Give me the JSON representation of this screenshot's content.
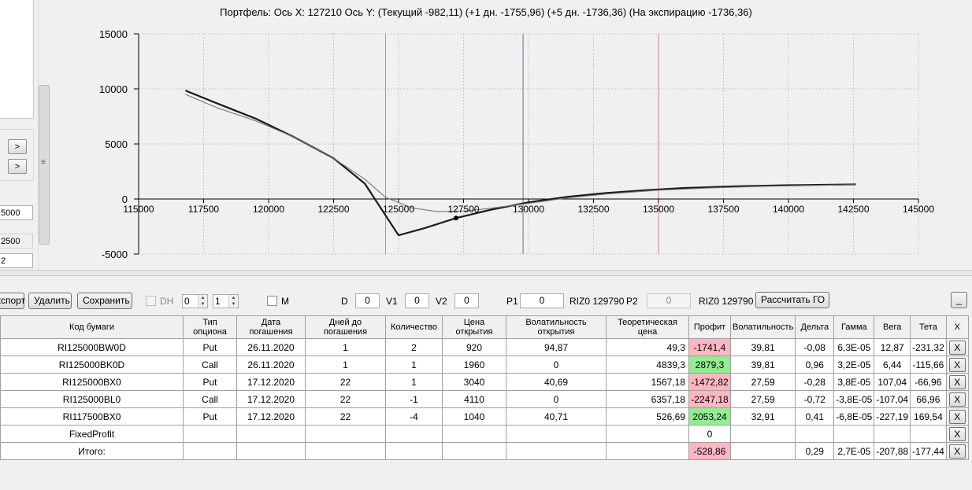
{
  "left_panel": {
    "field1": "5000",
    "field2": "2500",
    "field3": "2",
    "next_btn": ">",
    "scroll_grip": "≡"
  },
  "chart": {
    "title": "Портфель: Ось X: 127210 Ось Y:  (Текущий -982,11)  (+1 дн. -1755,96)  (+5 дн. -1736,36)  (На экспирацию -1736,36)",
    "colors": {
      "expiry_line": "#1a1a1a",
      "current_line": "#777777",
      "strike_lines": "#e07a8a",
      "cursor_line": "#6a6a9a"
    }
  },
  "chart_data": {
    "type": "line",
    "xlim": [
      115000,
      145000
    ],
    "ylim": [
      -5000,
      15000
    ],
    "x_ticks": [
      "115000",
      "117500",
      "120000",
      "122500",
      "125000",
      "127500",
      "130000",
      "132500",
      "135000",
      "137500",
      "140000",
      "142500",
      "145000"
    ],
    "y_ticks": [
      "15000",
      "10000",
      "5000",
      "0",
      "-5000"
    ],
    "grid": true,
    "vertical_markers": [
      {
        "name": "strike-low",
        "x": 124500
      },
      {
        "name": "cursor",
        "x": 129790
      },
      {
        "name": "strike-high",
        "x": 135000
      }
    ],
    "marker_point": {
      "x": 127210,
      "y": -1736
    },
    "series": [
      {
        "x": [
          116800,
          118000,
          119500,
          121000,
          122500,
          123700,
          125000,
          126000,
          127210,
          128500,
          130000,
          131500,
          133000,
          134500,
          136000,
          138000,
          140000,
          142600
        ],
        "y": [
          9850,
          8700,
          7300,
          5600,
          3700,
          1400,
          -3300,
          -2650,
          -1736,
          -1000,
          -300,
          200,
          550,
          800,
          1000,
          1150,
          1250,
          1320
        ]
      },
      {
        "x": [
          116800,
          118000,
          119500,
          121000,
          122500,
          123700,
          124500,
          125500,
          126500,
          127500,
          128500,
          130000,
          131500,
          133000,
          135000,
          137000,
          139000,
          142600
        ],
        "y": [
          9500,
          8300,
          7100,
          5600,
          3700,
          1800,
          150,
          -800,
          -1150,
          -1100,
          -850,
          -400,
          100,
          450,
          800,
          1000,
          1150,
          1300
        ]
      }
    ]
  },
  "toolbar": {
    "export_label": "Экспорт",
    "delete_label": "Удалить",
    "save_label": "Сохранить",
    "dh_label": "DH",
    "spin1": "0",
    "spin2": "1",
    "m_label": "M",
    "d_label": "D",
    "d_value": "0",
    "v1_label": "V1",
    "v1_value": "0",
    "v2_label": "V2",
    "v2_value": "0",
    "p1_label": "P1",
    "p1_value": "0",
    "riz1": "RIZ0 129790",
    "p2_label": "P2",
    "p2_value": "0",
    "riz2": "RIZ0 129790",
    "calc_label": "Рассчитать ГО",
    "minimize_label": "_"
  },
  "grid": {
    "headers": {
      "code": "Код бумаги",
      "type": "Тип опциона",
      "date": "Дата погашения",
      "days": "Дней до погашения",
      "qty": "Количество",
      "open_price": "Цена открытия",
      "open_vol": "Волатильность открытия",
      "theo": "Теоретическая цена",
      "profit": "Профит",
      "vol": "Волатильность",
      "delta": "Дельта",
      "gamma": "Гамма",
      "vega": "Вега",
      "theta": "Тета",
      "x": "X"
    },
    "rows": [
      {
        "code": "RI125000BW0D",
        "type": "Put",
        "date": "26.11.2020",
        "days": "1",
        "qty": "2",
        "open_price": "920",
        "open_vol": "94,87",
        "theo": "49,3",
        "profit": "-1741,4",
        "vol": "39,81",
        "delta": "-0,08",
        "gamma": "6,3E-05",
        "vega": "12,87",
        "theta": "-231,32",
        "x": "X"
      },
      {
        "code": "RI125000BK0D",
        "type": "Call",
        "date": "26.11.2020",
        "days": "1",
        "qty": "1",
        "open_price": "1960",
        "open_vol": "0",
        "theo": "4839,3",
        "profit": "2879,3",
        "vol": "39,81",
        "delta": "0,96",
        "gamma": "3,2E-05",
        "vega": "6,44",
        "theta": "-115,66",
        "x": "X"
      },
      {
        "code": "RI125000BX0",
        "type": "Put",
        "date": "17.12.2020",
        "days": "22",
        "qty": "1",
        "open_price": "3040",
        "open_vol": "40,69",
        "theo": "1567,18",
        "profit": "-1472,82",
        "vol": "27,59",
        "delta": "-0,28",
        "gamma": "3,8E-05",
        "vega": "107,04",
        "theta": "-66,96",
        "x": "X"
      },
      {
        "code": "RI125000BL0",
        "type": "Call",
        "date": "17.12.2020",
        "days": "22",
        "qty": "-1",
        "open_price": "4110",
        "open_vol": "0",
        "theo": "6357,18",
        "profit": "-2247,18",
        "vol": "27,59",
        "delta": "-0,72",
        "gamma": "-3,8E-05",
        "vega": "-107,04",
        "theta": "66,96",
        "x": "X"
      },
      {
        "code": "RI117500BX0",
        "type": "Put",
        "date": "17.12.2020",
        "days": "22",
        "qty": "-4",
        "open_price": "1040",
        "open_vol": "40,71",
        "theo": "526,69",
        "profit": "2053,24",
        "vol": "32,91",
        "delta": "0,41",
        "gamma": "-6,8E-05",
        "vega": "-227,19",
        "theta": "169,54",
        "x": "X"
      }
    ],
    "fixed": {
      "code": "FixedProfit",
      "profit": "0",
      "x": "X"
    },
    "total": {
      "code": "Итого:",
      "profit": "-528,86",
      "delta": "0,29",
      "gamma": "2,7E-05",
      "vega": "-207,88",
      "theta": "-177,44",
      "x": "X"
    }
  }
}
